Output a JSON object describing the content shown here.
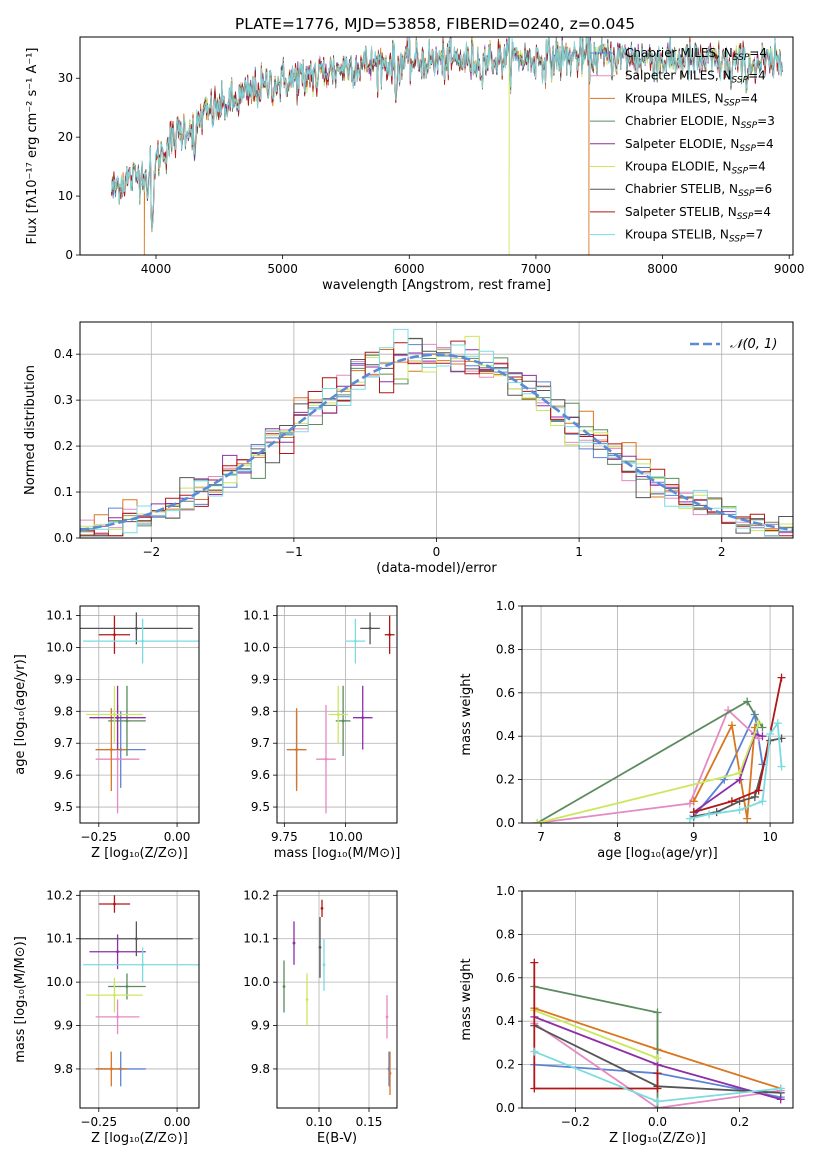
{
  "colors": {
    "chabrier_miles": "#5b83d6",
    "salpeter_miles": "#e58ac3",
    "kroupa_miles": "#d9761f",
    "chabrier_elodie": "#5b8b5e",
    "salpeter_elodie": "#8e2ea8",
    "kroupa_elodie": "#cbe85c",
    "chabrier_stelib": "#555555",
    "salpeter_stelib": "#b31616",
    "kroupa_stelib": "#7adbe0",
    "normal": "#5b8bd6"
  },
  "chart_data": [
    {
      "id": "spectrum",
      "type": "line",
      "title": "PLATE=1776, MJD=53858, FIBERID=0240, z=0.045",
      "xlabel": "wavelength [Angstrom, rest frame]",
      "ylabel": "Flux [fλ10⁻¹⁷ erg cm⁻² s⁻¹ A⁻¹]",
      "xlim": [
        3400,
        9030
      ],
      "ylim": [
        0,
        37
      ],
      "xticks": [
        "4000",
        "5000",
        "6000",
        "7000",
        "8000",
        "9000"
      ],
      "yticks": [
        "0",
        "10",
        "20",
        "30"
      ],
      "legend_position": "right",
      "legend": [
        {
          "label": "Chabrier MILES, N",
          "sub": "SSP",
          "tail": "=4",
          "color_key": "chabrier_miles"
        },
        {
          "label": "Salpeter MILES, N",
          "sub": "SSP",
          "tail": "=4",
          "color_key": "salpeter_miles"
        },
        {
          "label": "Kroupa MILES, N",
          "sub": "SSP",
          "tail": "=4",
          "color_key": "kroupa_miles"
        },
        {
          "label": "Chabrier ELODIE, N",
          "sub": "SSP",
          "tail": "=3",
          "color_key": "chabrier_elodie"
        },
        {
          "label": "Salpeter ELODIE, N",
          "sub": "SSP",
          "tail": "=4",
          "color_key": "salpeter_elodie"
        },
        {
          "label": "Kroupa ELODIE, N",
          "sub": "SSP",
          "tail": "=4",
          "color_key": "kroupa_elodie"
        },
        {
          "label": "Chabrier STELIB, N",
          "sub": "SSP",
          "tail": "=6",
          "color_key": "chabrier_stelib"
        },
        {
          "label": "Salpeter STELIB, N",
          "sub": "SSP",
          "tail": "=4",
          "color_key": "salpeter_stelib"
        },
        {
          "label": "Kroupa STELIB, N",
          "sub": "SSP",
          "tail": "=7",
          "color_key": "kroupa_stelib"
        }
      ],
      "continuum": [
        [
          3650,
          11
        ],
        [
          3700,
          12
        ],
        [
          3800,
          13
        ],
        [
          3900,
          14
        ],
        [
          4000,
          16
        ],
        [
          4100,
          19
        ],
        [
          4200,
          21
        ],
        [
          4300,
          22
        ],
        [
          4400,
          24
        ],
        [
          4500,
          25
        ],
        [
          4600,
          26
        ],
        [
          4700,
          27
        ],
        [
          4800,
          28
        ],
        [
          4900,
          29
        ],
        [
          5000,
          29.5
        ],
        [
          5100,
          30
        ],
        [
          5200,
          30.5
        ],
        [
          5300,
          31
        ],
        [
          5400,
          31.5
        ],
        [
          5500,
          32
        ],
        [
          5600,
          32.2
        ],
        [
          5800,
          32.5
        ],
        [
          6000,
          32.8
        ],
        [
          6200,
          33
        ],
        [
          6400,
          33
        ],
        [
          6600,
          33.2
        ],
        [
          6800,
          33.5
        ],
        [
          7000,
          33.3
        ],
        [
          7200,
          33.5
        ],
        [
          7400,
          33.7
        ],
        [
          7600,
          33.6
        ],
        [
          7800,
          33.4
        ],
        [
          8000,
          33.2
        ],
        [
          8200,
          33
        ],
        [
          8400,
          32.8
        ],
        [
          8600,
          32.6
        ],
        [
          8800,
          32.5
        ],
        [
          8950,
          32.3
        ]
      ],
      "features": [
        {
          "x": 3934,
          "y": 9
        },
        {
          "x": 3969,
          "y": 4
        },
        {
          "x": 4305,
          "y": 16
        },
        {
          "x": 5175,
          "y": 27
        },
        {
          "x": 5270,
          "y": 28
        },
        {
          "x": 5895,
          "y": 26
        },
        {
          "x": 6563,
          "y": 29
        },
        {
          "x": 8542,
          "y": 28
        },
        {
          "x": 8662,
          "y": 28
        }
      ],
      "gaps": [
        {
          "x": 3910,
          "series": "kroupa_miles"
        },
        {
          "x": 6790,
          "series": "kroupa_elodie"
        },
        {
          "x": 7420,
          "series": "kroupa_miles"
        }
      ]
    },
    {
      "id": "residuals",
      "type": "step",
      "xlabel": "(data-model)/error",
      "ylabel": "Normed distribution",
      "xlim": [
        -2.5,
        2.5
      ],
      "ylim": [
        0,
        0.47
      ],
      "xticks": [
        "−2",
        "−1",
        "0",
        "1",
        "2"
      ],
      "yticks": [
        "0.0",
        "0.1",
        "0.2",
        "0.3",
        "0.4"
      ],
      "legend": [
        {
          "label": "𝒩(0, 1)",
          "color_key": "normal",
          "dashed": true
        }
      ],
      "bin_width": 0.1
    },
    {
      "id": "age_vs_Z",
      "type": "errorbar",
      "xlabel": "Z [log₁₀(Z/Z⊙)]",
      "ylabel": "age [log₁₀(age/yr)]",
      "xlim": [
        -0.31,
        0.07
      ],
      "ylim": [
        9.45,
        10.13
      ],
      "xticks": [
        "−0.25",
        "0.00"
      ],
      "yticks": [
        "9.5",
        "9.6",
        "9.7",
        "9.8",
        "9.9",
        "10.0",
        "10.1"
      ],
      "points": [
        {
          "series": "chabrier_miles",
          "x": -0.18,
          "xerr": 0.08,
          "y": 9.68,
          "yerr": 0.12
        },
        {
          "series": "salpeter_miles",
          "x": -0.19,
          "xerr": 0.07,
          "y": 9.65,
          "yerr": 0.17
        },
        {
          "series": "kroupa_miles",
          "x": -0.21,
          "xerr": 0.05,
          "y": 9.68,
          "yerr": 0.13
        },
        {
          "series": "chabrier_elodie",
          "x": -0.16,
          "xerr": 0.06,
          "y": 9.77,
          "yerr": 0.11
        },
        {
          "series": "salpeter_elodie",
          "x": -0.19,
          "xerr": 0.09,
          "y": 9.78,
          "yerr": 0.1
        },
        {
          "series": "kroupa_elodie",
          "x": -0.2,
          "xerr": 0.09,
          "y": 9.79,
          "yerr": 0.09
        },
        {
          "series": "chabrier_stelib",
          "x": -0.13,
          "xerr": 0.18,
          "y": 10.06,
          "yerr": 0.05
        },
        {
          "series": "salpeter_stelib",
          "x": -0.2,
          "xerr": 0.05,
          "y": 10.04,
          "yerr": 0.06
        },
        {
          "series": "kroupa_stelib",
          "x": -0.11,
          "xerr": 0.19,
          "y": 10.02,
          "yerr": 0.07
        }
      ]
    },
    {
      "id": "age_vs_mass",
      "type": "errorbar",
      "xlabel": "mass [log₁₀(M/M⊙)]",
      "xlim": [
        9.72,
        10.21
      ],
      "ylim": [
        9.45,
        10.13
      ],
      "xticks": [
        "9.75",
        "10.00"
      ],
      "yticks": [
        "9.5",
        "9.6",
        "9.7",
        "9.8",
        "9.9",
        "10.0",
        "10.1"
      ],
      "points": [
        {
          "series": "chabrier_miles",
          "x": 9.8,
          "xerr": 0.04,
          "y": 9.68,
          "yerr": 0.12
        },
        {
          "series": "salpeter_miles",
          "x": 9.92,
          "xerr": 0.04,
          "y": 9.65,
          "yerr": 0.17
        },
        {
          "series": "kroupa_miles",
          "x": 9.8,
          "xerr": 0.04,
          "y": 9.68,
          "yerr": 0.13
        },
        {
          "series": "chabrier_elodie",
          "x": 9.99,
          "xerr": 0.03,
          "y": 9.77,
          "yerr": 0.11
        },
        {
          "series": "salpeter_elodie",
          "x": 10.07,
          "xerr": 0.04,
          "y": 9.78,
          "yerr": 0.1
        },
        {
          "series": "kroupa_elodie",
          "x": 9.97,
          "xerr": 0.04,
          "y": 9.79,
          "yerr": 0.09
        },
        {
          "series": "chabrier_stelib",
          "x": 10.1,
          "xerr": 0.04,
          "y": 10.06,
          "yerr": 0.05
        },
        {
          "series": "salpeter_stelib",
          "x": 10.18,
          "xerr": 0.02,
          "y": 10.04,
          "yerr": 0.06
        },
        {
          "series": "kroupa_stelib",
          "x": 10.04,
          "xerr": 0.04,
          "y": 10.02,
          "yerr": 0.07
        }
      ]
    },
    {
      "id": "weight_vs_age",
      "type": "line",
      "xlabel": "age [log₁₀(age/yr)]",
      "ylabel": "mass weight",
      "xlim": [
        6.75,
        10.3
      ],
      "ylim": [
        0,
        1
      ],
      "xticks": [
        "7",
        "8",
        "9",
        "10"
      ],
      "yticks": [
        "0.0",
        "0.2",
        "0.4",
        "0.6",
        "0.8",
        "1.0"
      ],
      "series": [
        {
          "series": "chabrier_miles",
          "x": [
            9.0,
            9.4,
            9.8,
            9.9
          ],
          "y": [
            0.03,
            0.2,
            0.5,
            0.27
          ]
        },
        {
          "series": "salpeter_miles",
          "x": [
            6.95,
            8.95,
            9.45,
            9.85
          ],
          "y": [
            0,
            0.09,
            0.52,
            0.39
          ]
        },
        {
          "series": "kroupa_miles",
          "x": [
            9.0,
            9.5,
            9.7,
            9.8
          ],
          "y": [
            0.1,
            0.45,
            0.02,
            0.44
          ]
        },
        {
          "series": "chabrier_elodie",
          "x": [
            6.95,
            9.7,
            9.9
          ],
          "y": [
            0,
            0.56,
            0.44
          ]
        },
        {
          "series": "salpeter_elodie",
          "x": [
            9.0,
            9.6,
            9.8,
            9.9
          ],
          "y": [
            0.05,
            0.2,
            0.41,
            0.4
          ]
        },
        {
          "series": "kroupa_elodie",
          "x": [
            6.95,
            9.6,
            9.85
          ],
          "y": [
            0,
            0.23,
            0.46
          ]
        },
        {
          "series": "chabrier_stelib",
          "x": [
            9.0,
            9.3,
            9.6,
            9.8,
            10.0,
            10.15
          ],
          "y": [
            0.03,
            0.05,
            0.1,
            0.12,
            0.38,
            0.39
          ]
        },
        {
          "series": "salpeter_stelib",
          "x": [
            9.0,
            9.5,
            9.85,
            10.15
          ],
          "y": [
            0.05,
            0.1,
            0.15,
            0.67
          ]
        },
        {
          "series": "kroupa_stelib",
          "x": [
            8.95,
            9.2,
            9.6,
            9.9,
            10.0,
            10.1,
            10.15
          ],
          "y": [
            0.02,
            0.04,
            0.06,
            0.1,
            0.41,
            0.46,
            0.26
          ]
        }
      ]
    },
    {
      "id": "mass_vs_Z",
      "type": "errorbar",
      "xlabel": "Z [log₁₀(Z/Z⊙)]",
      "ylabel": "mass [log₁₀(M/M⊙)]",
      "xlim": [
        -0.31,
        0.07
      ],
      "ylim": [
        9.71,
        10.21
      ],
      "xticks": [
        "−0.25",
        "0.00"
      ],
      "yticks": [
        "9.8",
        "9.9",
        "10.0",
        "10.1",
        "10.2"
      ],
      "points": [
        {
          "series": "chabrier_miles",
          "x": -0.18,
          "xerr": 0.08,
          "y": 9.8,
          "yerr": 0.04
        },
        {
          "series": "salpeter_miles",
          "x": -0.19,
          "xerr": 0.07,
          "y": 9.92,
          "yerr": 0.04
        },
        {
          "series": "kroupa_miles",
          "x": -0.21,
          "xerr": 0.05,
          "y": 9.8,
          "yerr": 0.04
        },
        {
          "series": "chabrier_elodie",
          "x": -0.16,
          "xerr": 0.06,
          "y": 9.99,
          "yerr": 0.03
        },
        {
          "series": "salpeter_elodie",
          "x": -0.19,
          "xerr": 0.09,
          "y": 10.07,
          "yerr": 0.04
        },
        {
          "series": "kroupa_elodie",
          "x": -0.2,
          "xerr": 0.09,
          "y": 9.97,
          "yerr": 0.04
        },
        {
          "series": "chabrier_stelib",
          "x": -0.13,
          "xerr": 0.18,
          "y": 10.1,
          "yerr": 0.04
        },
        {
          "series": "salpeter_stelib",
          "x": -0.2,
          "xerr": 0.05,
          "y": 10.18,
          "yerr": 0.02
        },
        {
          "series": "kroupa_stelib",
          "x": -0.11,
          "xerr": 0.19,
          "y": 10.04,
          "yerr": 0.04
        }
      ]
    },
    {
      "id": "mass_vs_ebv",
      "type": "errorbar",
      "xlabel": "E(B-V)",
      "xlim": [
        0.058,
        0.178
      ],
      "ylim": [
        9.71,
        10.21
      ],
      "xticks": [
        "0.10",
        "0.15"
      ],
      "yticks": [
        "9.8",
        "9.9",
        "10.0",
        "10.1",
        "10.2"
      ],
      "points": [
        {
          "series": "chabrier_miles",
          "x": 0.17,
          "xerr": 0,
          "y": 9.8,
          "yerr": 0.04
        },
        {
          "series": "salpeter_miles",
          "x": 0.168,
          "xerr": 0,
          "y": 9.92,
          "yerr": 0.05
        },
        {
          "series": "kroupa_miles",
          "x": 0.171,
          "xerr": 0,
          "y": 9.79,
          "yerr": 0.05
        },
        {
          "series": "chabrier_elodie",
          "x": 0.065,
          "xerr": 0,
          "y": 9.99,
          "yerr": 0.06
        },
        {
          "series": "salpeter_elodie",
          "x": 0.075,
          "xerr": 0,
          "y": 10.09,
          "yerr": 0.05
        },
        {
          "series": "kroupa_elodie",
          "x": 0.088,
          "xerr": 0,
          "y": 9.96,
          "yerr": 0.06
        },
        {
          "series": "chabrier_stelib",
          "x": 0.101,
          "xerr": 0,
          "y": 10.08,
          "yerr": 0.07
        },
        {
          "series": "salpeter_stelib",
          "x": 0.103,
          "xerr": 0,
          "y": 10.17,
          "yerr": 0.02
        },
        {
          "series": "kroupa_stelib",
          "x": 0.105,
          "xerr": 0,
          "y": 10.04,
          "yerr": 0.06
        }
      ]
    },
    {
      "id": "weight_vs_Z",
      "type": "line",
      "xlabel": "Z [log₁₀(Z/Z⊙)]",
      "ylabel": "mass weight",
      "xlim": [
        -0.33,
        0.33
      ],
      "ylim": [
        0,
        1
      ],
      "xticks": [
        "−0.2",
        "0.0",
        "0.2"
      ],
      "yticks": [
        "0.0",
        "0.2",
        "0.4",
        "0.6",
        "0.8",
        "1.0"
      ],
      "series": [
        {
          "series": "chabrier_miles",
          "x": [
            -0.3,
            0.0,
            0.3
          ],
          "y": [
            0.2,
            0.16,
            0.05
          ]
        },
        {
          "series": "salpeter_miles",
          "x": [
            -0.3,
            0.0,
            0.3
          ],
          "y": [
            0.39,
            0.0,
            0.08
          ]
        },
        {
          "series": "kroupa_miles",
          "x": [
            -0.3,
            0.0,
            0.3
          ],
          "y": [
            0.46,
            0.27,
            0.09
          ]
        },
        {
          "series": "chabrier_elodie",
          "x": [
            -0.3,
            0.0,
            0.0
          ],
          "y": [
            0.56,
            0.44,
            0.0
          ]
        },
        {
          "series": "salpeter_elodie",
          "x": [
            -0.3,
            0.0,
            0.3
          ],
          "y": [
            0.42,
            0.2,
            0.04
          ]
        },
        {
          "series": "kroupa_elodie",
          "x": [
            -0.3,
            0.0
          ],
          "y": [
            0.45,
            0.23
          ]
        },
        {
          "series": "chabrier_stelib",
          "x": [
            -0.3,
            0.0,
            0.3
          ],
          "y": [
            0.38,
            0.1,
            0.07
          ]
        },
        {
          "series": "salpeter_stelib",
          "x": [
            -0.3,
            -0.3,
            0.0,
            0.0
          ],
          "y": [
            0.67,
            0.09,
            0.09,
            0.16
          ]
        },
        {
          "series": "kroupa_stelib",
          "x": [
            -0.3,
            0.0,
            0.3
          ],
          "y": [
            0.26,
            0.03,
            0.09
          ]
        }
      ]
    }
  ]
}
